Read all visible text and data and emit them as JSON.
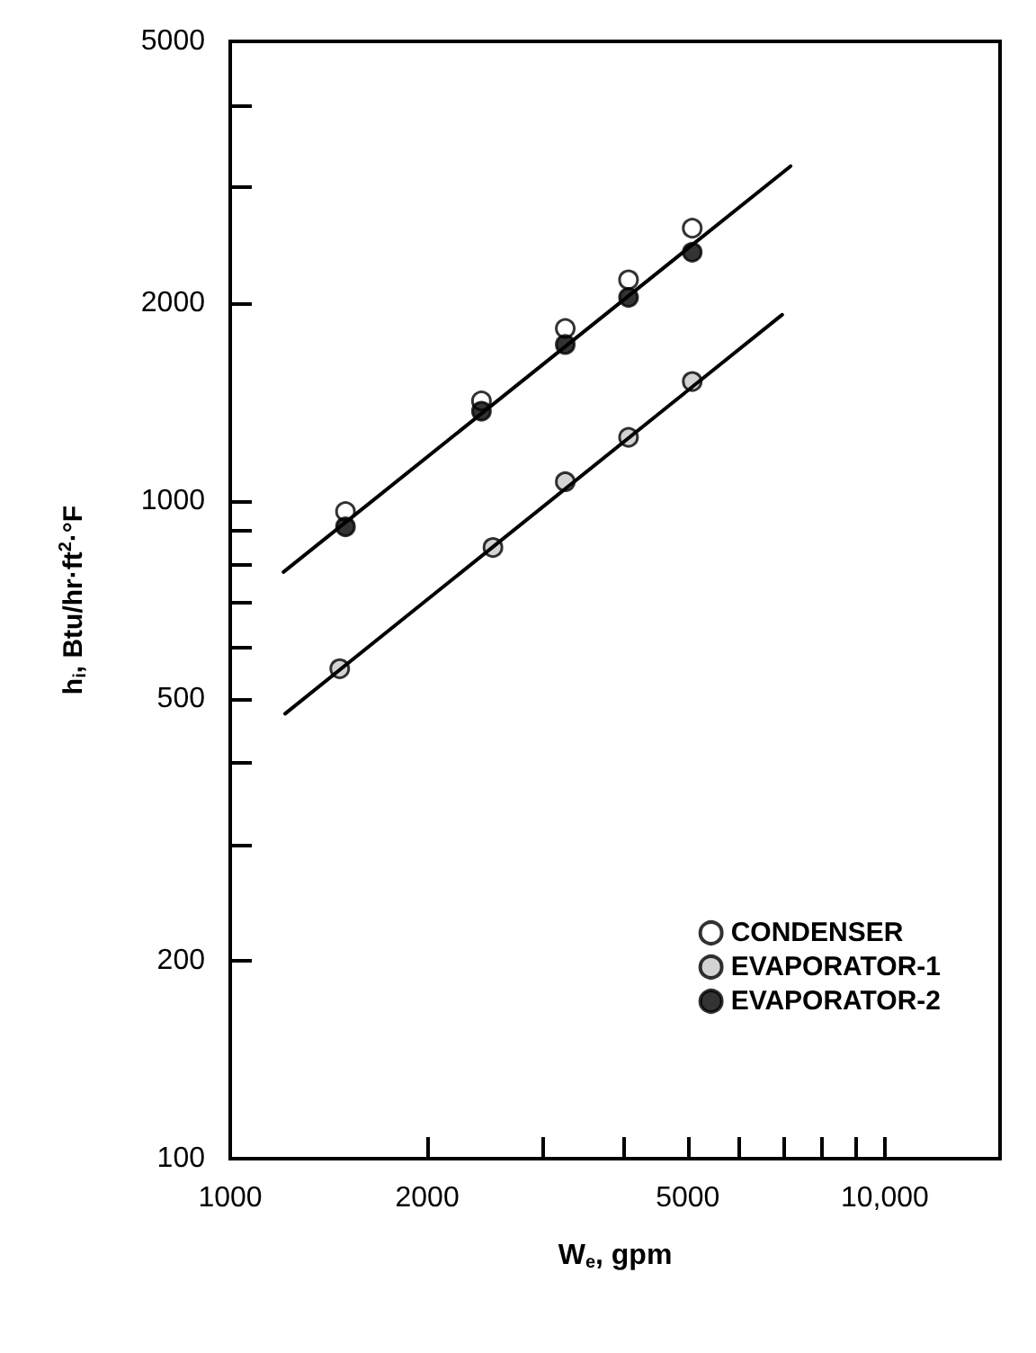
{
  "chart_data": {
    "type": "scatter",
    "xlabel": "W$_{e}$, gpm",
    "ylabel": "h$_{i}$, Btu/hr·ft$^{2}$·°F",
    "log": "xy",
    "grid": false,
    "legend": "bottom right",
    "marker": "circle",
    "xlim": [
      1000,
      15000
    ],
    "ylim": [
      100,
      5000
    ],
    "xticks": [
      1000,
      2000,
      {
        "value": 3000,
        "label": null
      },
      {
        "value": 4000,
        "label": null
      },
      5000,
      {
        "value": 6000,
        "label": null
      },
      {
        "value": 7000,
        "label": null
      },
      {
        "value": 8000,
        "label": null
      },
      {
        "value": 9000,
        "label": null
      },
      {
        "value": 10000,
        "label": "10,000"
      }
    ],
    "yticks": [
      100,
      200,
      {
        "value": 300,
        "label": null
      },
      {
        "value": 400,
        "label": null
      },
      500,
      {
        "value": 600,
        "label": null
      },
      {
        "value": 700,
        "label": null
      },
      {
        "value": 800,
        "label": null
      },
      {
        "value": 900,
        "label": null
      },
      1000,
      2000,
      {
        "value": 3000,
        "label": null
      },
      {
        "value": 4000,
        "label": null
      },
      5000
    ],
    "series": [
      {
        "name": "CONDENSER",
        "color": "#ffffff",
        "x": [
          1500,
          2420,
          3250,
          4060,
          5080
        ],
        "values": [
          964,
          1420,
          1830,
          2170,
          2600
        ]
      },
      {
        "name": "EVAPORATOR-1",
        "color": "#c8c8c8",
        "x": [
          1470,
          2520,
          3250,
          4060,
          5080
        ],
        "values": [
          556,
          850,
          1070,
          1250,
          1520
        ]
      },
      {
        "name": "EVAPORATOR-2",
        "color": "#000000",
        "x": [
          1500,
          2420,
          3250,
          4060,
          5080
        ],
        "values": [
          914,
          1370,
          1730,
          2040,
          2390
        ]
      },
      {
        "type": "line",
        "color": "#000000",
        "marker": "none",
        "x": [
          1206,
          7180
        ],
        "values": [
          780,
          3230
        ]
      },
      {
        "type": "line",
        "color": "#000000",
        "marker": "none",
        "x": [
          1213,
          6970
        ],
        "values": [
          475,
          1920
        ]
      }
    ]
  }
}
